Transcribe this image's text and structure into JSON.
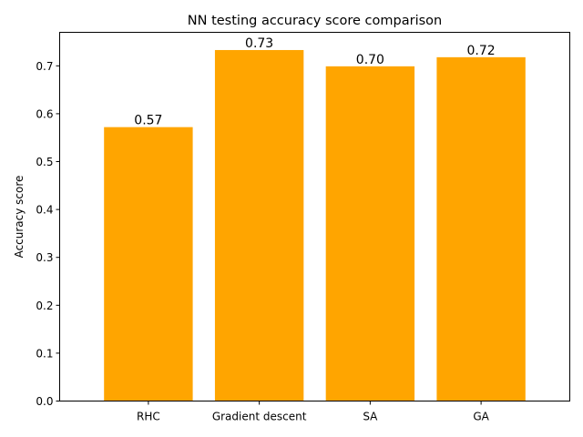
{
  "chart_data": {
    "type": "bar",
    "title": "NN testing accuracy score comparison",
    "xlabel": "",
    "ylabel": "Accuracy score",
    "categories": [
      "RHC",
      "Gradient descent",
      "SA",
      "GA"
    ],
    "values": [
      0.572,
      0.733,
      0.699,
      0.718
    ],
    "value_labels": [
      "0.57",
      "0.73",
      "0.70",
      "0.72"
    ],
    "ylim": [
      0,
      0.77
    ],
    "yticks": [
      0.0,
      0.1,
      0.2,
      0.3,
      0.4,
      0.5,
      0.6,
      0.7
    ],
    "ytick_labels": [
      "0.0",
      "0.1",
      "0.2",
      "0.3",
      "0.4",
      "0.5",
      "0.6",
      "0.7"
    ],
    "bar_color": "#ffa500",
    "grid": false,
    "legend": "none"
  }
}
